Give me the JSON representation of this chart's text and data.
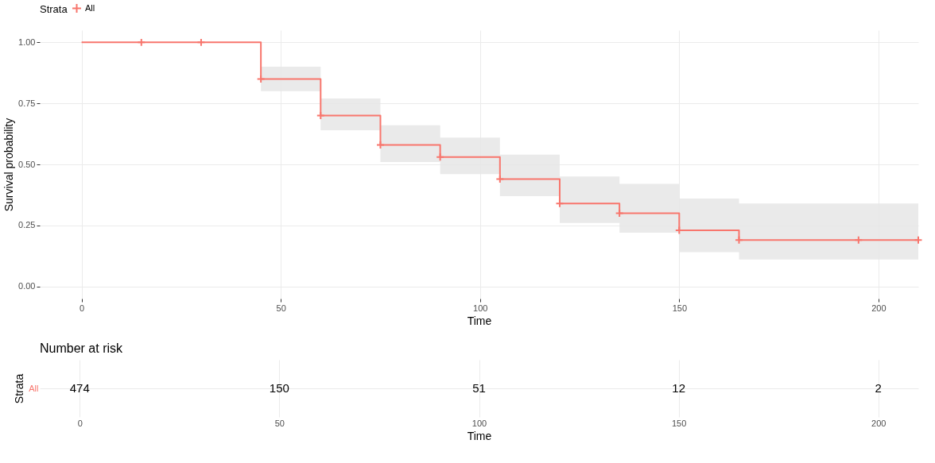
{
  "chart_data": [
    {
      "type": "step",
      "xlabel": "Time",
      "ylabel": "Survival probability",
      "legend_title": "Strata",
      "legend": "top",
      "grid": true,
      "xlim": [
        -10.5,
        210
      ],
      "ylim": [
        -0.05,
        1.05
      ],
      "xticks": [
        0,
        50,
        100,
        150,
        200
      ],
      "yticks": [
        {
          "value": 0,
          "label": "0.00"
        },
        {
          "value": 0.25,
          "label": "0.25"
        },
        {
          "value": 0.5,
          "label": "0.50"
        },
        {
          "value": 0.75,
          "label": "0.75"
        },
        {
          "value": 1,
          "label": "1.00"
        }
      ],
      "series": [
        {
          "name": "All",
          "type": "step",
          "color": "#f8766d",
          "x": [
            0,
            45,
            60,
            75,
            90,
            105,
            120,
            135,
            150,
            165,
            210
          ],
          "values": [
            1,
            0.85,
            0.7,
            0.58,
            0.53,
            0.44,
            0.34,
            0.3,
            0.23,
            0.19,
            0.19
          ],
          "lower": [
            1,
            0.8,
            0.64,
            0.51,
            0.46,
            0.37,
            0.26,
            0.22,
            0.14,
            0.11,
            0.11
          ],
          "upper": [
            1,
            0.9,
            0.77,
            0.66,
            0.61,
            0.54,
            0.45,
            0.42,
            0.36,
            0.34,
            0.34
          ]
        },
        {
          "type": "scatter",
          "color": "#f8766d",
          "marker": "cross",
          "x": [
            15,
            30,
            45,
            60,
            75,
            90,
            105,
            120,
            135,
            150,
            165,
            195,
            210
          ],
          "values": [
            1,
            1,
            0.85,
            0.7,
            0.58,
            0.53,
            0.44,
            0.34,
            0.3,
            0.23,
            0.19,
            0.19,
            0.19
          ]
        }
      ]
    },
    {
      "type": "heatmap",
      "title": "Number at risk",
      "xlabel": "Time",
      "ylabel": "Strata",
      "y_categories": [
        "All"
      ],
      "color": "#f8766d",
      "grid": true,
      "data_labels": true,
      "categories": [
        "0",
        "50",
        "100",
        "150",
        "200"
      ],
      "cells": [
        [
          474,
          150,
          51,
          12,
          2
        ]
      ]
    }
  ]
}
